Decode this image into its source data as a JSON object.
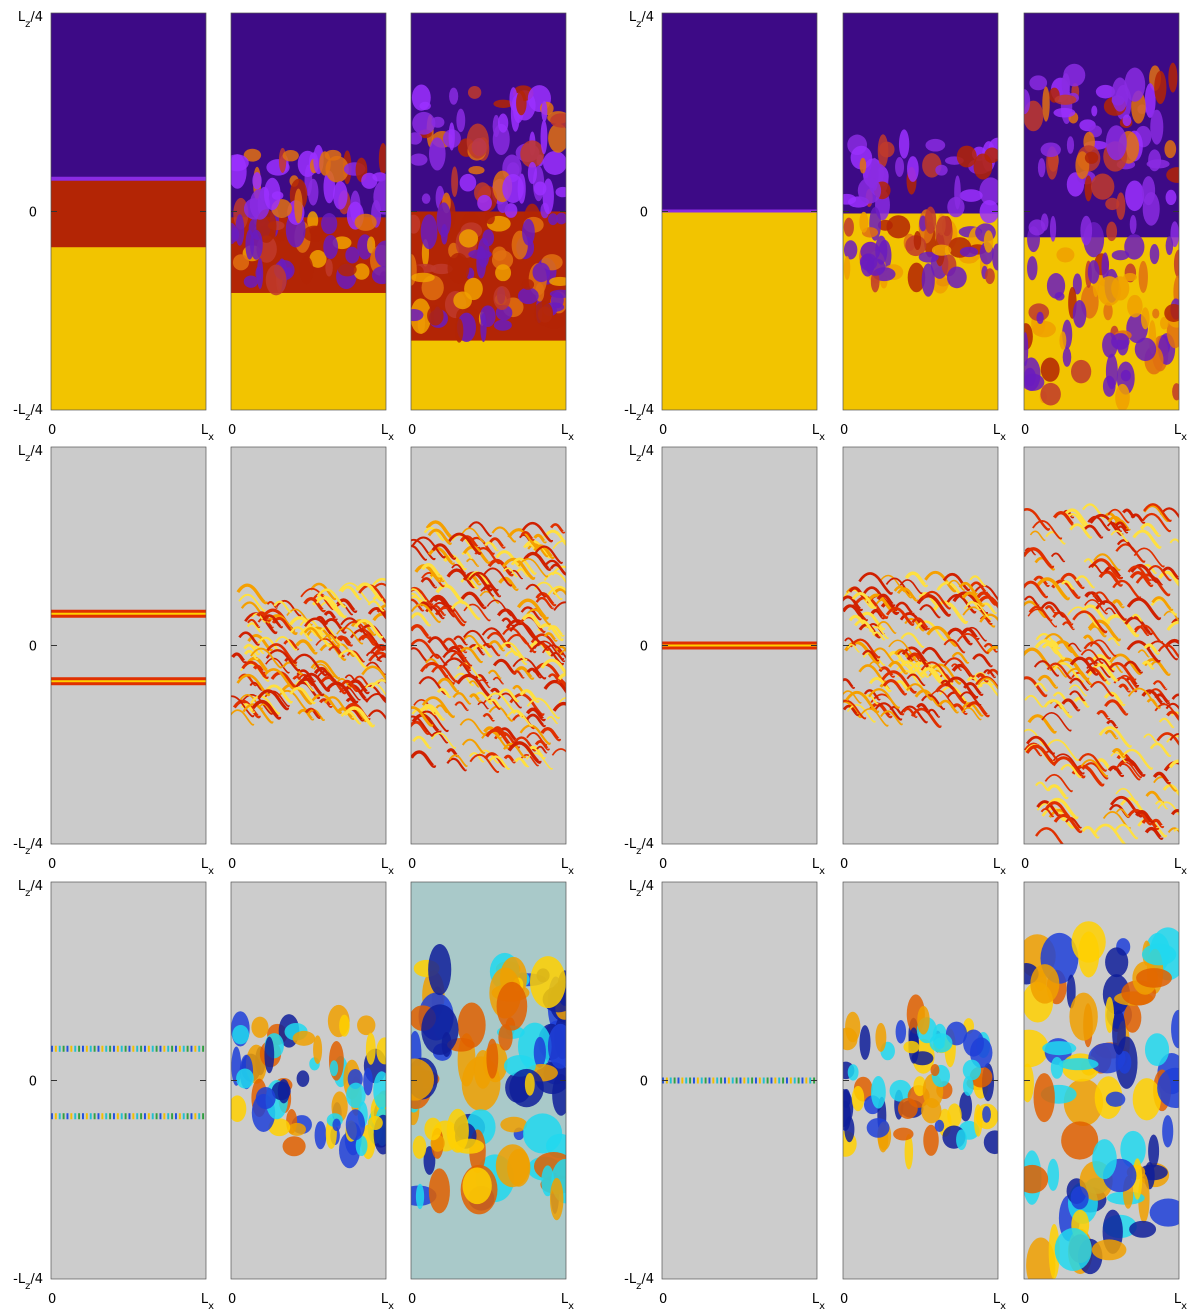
{
  "groups": [
    {
      "rows": [
        {
          "y_top": {
            "base": "L",
            "sub": "z",
            "suffix": "/4"
          },
          "y_mid": "0",
          "y_bottom": {
            "base": "-L",
            "sub": "z",
            "suffix": "/4"
          },
          "x_labels": [
            {
              "start": "0",
              "end_base": "L",
              "end_sub": "x"
            },
            {
              "start": "0",
              "end_base": "L",
              "end_sub": "x"
            },
            {
              "start": "0",
              "end_base": "L",
              "end_sub": "x"
            }
          ]
        },
        {
          "y_top": {
            "base": "L",
            "sub": "z",
            "suffix": "/4"
          },
          "y_mid": "0",
          "y_bottom": {
            "base": "-L",
            "sub": "z",
            "suffix": "/4"
          },
          "x_labels": [
            {
              "start": "0",
              "end_base": "L",
              "end_sub": "x"
            },
            {
              "start": "0",
              "end_base": "L",
              "end_sub": "x"
            },
            {
              "start": "0",
              "end_base": "L",
              "end_sub": "x"
            }
          ]
        },
        {
          "y_top": {
            "base": "L",
            "sub": "z",
            "suffix": "/4"
          },
          "y_mid": "0",
          "y_bottom": {
            "base": "-L",
            "sub": "z",
            "suffix": "/4"
          },
          "x_labels": [
            {
              "start": "0",
              "end_base": "L",
              "end_sub": "x"
            },
            {
              "start": "0",
              "end_base": "L",
              "end_sub": "x"
            },
            {
              "start": "0",
              "end_base": "L",
              "end_sub": "x"
            }
          ]
        }
      ]
    },
    {
      "rows": [
        {
          "y_top": {
            "base": "L",
            "sub": "z",
            "suffix": "/4"
          },
          "y_mid": "0",
          "y_bottom": {
            "base": "-L",
            "sub": "z",
            "suffix": "/4"
          },
          "x_labels": [
            {
              "start": "0",
              "end_base": "L",
              "end_sub": "x"
            },
            {
              "start": "0",
              "end_base": "L",
              "end_sub": "x"
            },
            {
              "start": "0",
              "end_base": "L",
              "end_sub": "x"
            }
          ]
        },
        {
          "y_top": {
            "base": "L",
            "sub": "z",
            "suffix": "/4"
          },
          "y_mid": "0",
          "y_bottom": {
            "base": "-L",
            "sub": "z",
            "suffix": "/4"
          },
          "x_labels": [
            {
              "start": "0",
              "end_base": "L",
              "end_sub": "x"
            },
            {
              "start": "0",
              "end_base": "L",
              "end_sub": "x"
            },
            {
              "start": "0",
              "end_base": "L",
              "end_sub": "x"
            }
          ]
        },
        {
          "y_top": {
            "base": "L",
            "sub": "z",
            "suffix": "/4"
          },
          "y_mid": "0",
          "y_bottom": {
            "base": "-L",
            "sub": "z",
            "suffix": "/4"
          },
          "x_labels": [
            {
              "start": "0",
              "end_base": "L",
              "end_sub": "x"
            },
            {
              "start": "0",
              "end_base": "L",
              "end_sub": "x"
            },
            {
              "start": "0",
              "end_base": "L",
              "end_sub": "x"
            }
          ]
        }
      ]
    }
  ]
}
